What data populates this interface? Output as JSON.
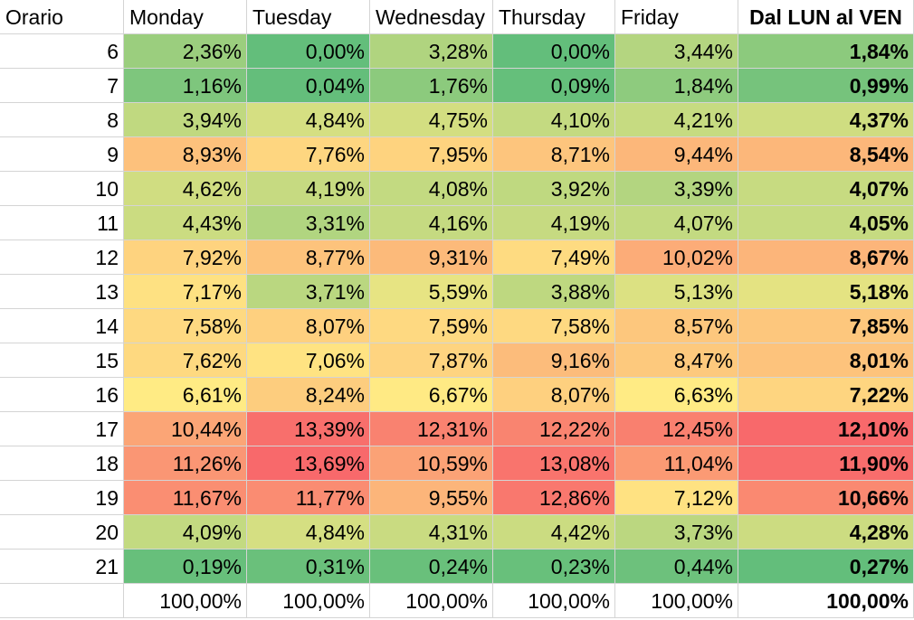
{
  "chart_data": {
    "type": "table",
    "header": [
      "Orario",
      "Monday",
      "Tuesday",
      "Wednesday",
      "Thursday",
      "Friday",
      "Dal LUN al VEN"
    ],
    "rows": [
      {
        "hour": "6",
        "values": [
          "2,36%",
          "0,00%",
          "3,28%",
          "0,00%",
          "3,44%"
        ],
        "total": "1,84%"
      },
      {
        "hour": "7",
        "values": [
          "1,16%",
          "0,04%",
          "1,76%",
          "0,09%",
          "1,84%"
        ],
        "total": "0,99%"
      },
      {
        "hour": "8",
        "values": [
          "3,94%",
          "4,84%",
          "4,75%",
          "4,10%",
          "4,21%"
        ],
        "total": "4,37%"
      },
      {
        "hour": "9",
        "values": [
          "8,93%",
          "7,76%",
          "7,95%",
          "8,71%",
          "9,44%"
        ],
        "total": "8,54%"
      },
      {
        "hour": "10",
        "values": [
          "4,62%",
          "4,19%",
          "4,08%",
          "3,92%",
          "3,39%"
        ],
        "total": "4,07%"
      },
      {
        "hour": "11",
        "values": [
          "4,43%",
          "3,31%",
          "4,16%",
          "4,19%",
          "4,07%"
        ],
        "total": "4,05%"
      },
      {
        "hour": "12",
        "values": [
          "7,92%",
          "8,77%",
          "9,31%",
          "7,49%",
          "10,02%"
        ],
        "total": "8,67%"
      },
      {
        "hour": "13",
        "values": [
          "7,17%",
          "3,71%",
          "5,59%",
          "3,88%",
          "5,13%"
        ],
        "total": "5,18%"
      },
      {
        "hour": "14",
        "values": [
          "7,58%",
          "8,07%",
          "7,59%",
          "7,58%",
          "8,57%"
        ],
        "total": "7,85%"
      },
      {
        "hour": "15",
        "values": [
          "7,62%",
          "7,06%",
          "7,87%",
          "9,16%",
          "8,47%"
        ],
        "total": "8,01%"
      },
      {
        "hour": "16",
        "values": [
          "6,61%",
          "8,24%",
          "6,67%",
          "8,07%",
          "6,63%"
        ],
        "total": "7,22%"
      },
      {
        "hour": "17",
        "values": [
          "10,44%",
          "13,39%",
          "12,31%",
          "12,22%",
          "12,45%"
        ],
        "total": "12,10%"
      },
      {
        "hour": "18",
        "values": [
          "11,26%",
          "13,69%",
          "10,59%",
          "13,08%",
          "11,04%"
        ],
        "total": "11,90%"
      },
      {
        "hour": "19",
        "values": [
          "11,67%",
          "11,77%",
          "9,55%",
          "12,86%",
          "7,12%"
        ],
        "total": "10,66%"
      },
      {
        "hour": "20",
        "values": [
          "4,09%",
          "4,84%",
          "4,31%",
          "4,42%",
          "3,73%"
        ],
        "total": "4,28%"
      },
      {
        "hour": "21",
        "values": [
          "0,19%",
          "0,31%",
          "0,24%",
          "0,23%",
          "0,44%"
        ],
        "total": "0,27%"
      }
    ],
    "column_totals": [
      "100,00%",
      "100,00%",
      "100,00%",
      "100,00%",
      "100,00%"
    ],
    "grand_total": "100,00%",
    "color_scale": {
      "low": "#63BE7B",
      "mid": "#FFEB84",
      "high": "#F8696B"
    }
  }
}
